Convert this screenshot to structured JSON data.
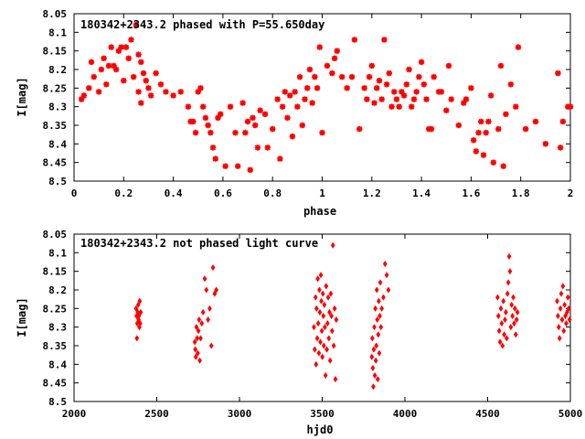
{
  "colors": {
    "marker": "#ff0000",
    "axis": "#000000",
    "background": "#ffffff"
  },
  "chart_data": [
    {
      "type": "scatter",
      "id": "phased",
      "title": "180342+2343.2 phased with P=55.650day",
      "xlabel": "phase",
      "ylabel": "I[mag]",
      "xlim": [
        0,
        2
      ],
      "ylim": [
        8.05,
        8.5
      ],
      "y_inverted": true,
      "xticks": [
        0,
        0.2,
        0.4,
        0.6,
        0.8,
        1,
        1.2,
        1.4,
        1.6,
        1.8,
        2
      ],
      "xtick_labels": [
        "0",
        "0.2",
        "0.4",
        "0.6",
        "0.8",
        "1",
        "1.2",
        "1.4",
        "1.6",
        "1.8",
        "2"
      ],
      "yticks": [
        8.05,
        8.1,
        8.15,
        8.2,
        8.25,
        8.3,
        8.35,
        8.4,
        8.45,
        8.5
      ],
      "ytick_labels": [
        "8.05",
        "8.1",
        "8.15",
        "8.2",
        "8.25",
        "8.3",
        "8.35",
        "8.4",
        "8.45",
        "8.5"
      ],
      "marker": "star",
      "points": [
        [
          0.03,
          8.28
        ],
        [
          0.04,
          8.27
        ],
        [
          0.06,
          8.25
        ],
        [
          0.07,
          8.18
        ],
        [
          0.08,
          8.22
        ],
        [
          0.1,
          8.26
        ],
        [
          0.11,
          8.2
        ],
        [
          0.12,
          8.17
        ],
        [
          0.13,
          8.24
        ],
        [
          0.14,
          8.19
        ],
        [
          0.15,
          8.14
        ],
        [
          0.16,
          8.19
        ],
        [
          0.17,
          8.2
        ],
        [
          0.18,
          8.15
        ],
        [
          0.19,
          8.14
        ],
        [
          0.2,
          8.23
        ],
        [
          0.21,
          8.14
        ],
        [
          0.22,
          8.17
        ],
        [
          0.23,
          8.12
        ],
        [
          0.25,
          8.08
        ],
        [
          0.24,
          8.22
        ],
        [
          0.26,
          8.16
        ],
        [
          0.27,
          8.18
        ],
        [
          0.26,
          8.26
        ],
        [
          0.27,
          8.29
        ],
        [
          0.28,
          8.21
        ],
        [
          0.29,
          8.23
        ],
        [
          0.3,
          8.25
        ],
        [
          0.31,
          8.27
        ],
        [
          0.33,
          8.21
        ],
        [
          0.35,
          8.24
        ],
        [
          0.37,
          8.26
        ],
        [
          0.4,
          8.27
        ],
        [
          0.43,
          8.26
        ],
        [
          0.46,
          8.3
        ],
        [
          0.47,
          8.34
        ],
        [
          0.48,
          8.34
        ],
        [
          0.49,
          8.37
        ],
        [
          0.5,
          8.26
        ],
        [
          0.51,
          8.25
        ],
        [
          0.52,
          8.3
        ],
        [
          0.53,
          8.33
        ],
        [
          0.54,
          8.35
        ],
        [
          0.55,
          8.37
        ],
        [
          0.56,
          8.41
        ],
        [
          0.57,
          8.44
        ],
        [
          0.58,
          8.33
        ],
        [
          0.59,
          8.32
        ],
        [
          0.61,
          8.46
        ],
        [
          0.63,
          8.3
        ],
        [
          0.65,
          8.37
        ],
        [
          0.66,
          8.46
        ],
        [
          0.68,
          8.29
        ],
        [
          0.69,
          8.37
        ],
        [
          0.7,
          8.34
        ],
        [
          0.71,
          8.47
        ],
        [
          0.72,
          8.33
        ],
        [
          0.73,
          8.35
        ],
        [
          0.74,
          8.41
        ],
        [
          0.75,
          8.31
        ],
        [
          0.77,
          8.32
        ],
        [
          0.78,
          8.41
        ],
        [
          0.8,
          8.36
        ],
        [
          0.82,
          8.28
        ],
        [
          0.83,
          8.44
        ],
        [
          0.84,
          8.3
        ],
        [
          0.85,
          8.26
        ],
        [
          0.86,
          8.33
        ],
        [
          0.87,
          8.27
        ],
        [
          0.88,
          8.38
        ],
        [
          0.89,
          8.26
        ],
        [
          0.9,
          8.3
        ],
        [
          0.91,
          8.22
        ],
        [
          0.92,
          8.35
        ],
        [
          0.93,
          8.28
        ],
        [
          0.94,
          8.25
        ],
        [
          0.95,
          8.2
        ],
        [
          0.96,
          8.29
        ],
        [
          0.97,
          8.22
        ],
        [
          0.98,
          8.25
        ],
        [
          0.99,
          8.14
        ],
        [
          1.0,
          8.37
        ],
        [
          1.02,
          8.19
        ],
        [
          1.04,
          8.21
        ],
        [
          1.05,
          8.17
        ],
        [
          1.06,
          8.15
        ],
        [
          1.08,
          8.22
        ],
        [
          1.1,
          8.25
        ],
        [
          1.12,
          8.22
        ],
        [
          1.13,
          8.12
        ],
        [
          1.15,
          8.36
        ],
        [
          1.17,
          8.25
        ],
        [
          1.18,
          8.28
        ],
        [
          1.19,
          8.22
        ],
        [
          1.2,
          8.19
        ],
        [
          1.21,
          8.29
        ],
        [
          1.22,
          8.25
        ],
        [
          1.23,
          8.23
        ],
        [
          1.24,
          8.28
        ],
        [
          1.25,
          8.12
        ],
        [
          1.26,
          8.24
        ],
        [
          1.27,
          8.21
        ],
        [
          1.28,
          8.3
        ],
        [
          1.29,
          8.26
        ],
        [
          1.3,
          8.28
        ],
        [
          1.31,
          8.3
        ],
        [
          1.32,
          8.26
        ],
        [
          1.33,
          8.27
        ],
        [
          1.34,
          8.24
        ],
        [
          1.35,
          8.2
        ],
        [
          1.36,
          8.3
        ],
        [
          1.37,
          8.28
        ],
        [
          1.38,
          8.26
        ],
        [
          1.39,
          8.22
        ],
        [
          1.4,
          8.18
        ],
        [
          1.41,
          8.24
        ],
        [
          1.42,
          8.28
        ],
        [
          1.43,
          8.36
        ],
        [
          1.44,
          8.36
        ],
        [
          1.45,
          8.22
        ],
        [
          1.47,
          8.26
        ],
        [
          1.48,
          8.26
        ],
        [
          1.5,
          8.31
        ],
        [
          1.51,
          8.19
        ],
        [
          1.52,
          8.28
        ],
        [
          1.55,
          8.35
        ],
        [
          1.57,
          8.29
        ],
        [
          1.58,
          8.28
        ],
        [
          1.6,
          8.25
        ],
        [
          1.61,
          8.39
        ],
        [
          1.62,
          8.42
        ],
        [
          1.63,
          8.37
        ],
        [
          1.64,
          8.34
        ],
        [
          1.65,
          8.43
        ],
        [
          1.66,
          8.37
        ],
        [
          1.67,
          8.34
        ],
        [
          1.68,
          8.27
        ],
        [
          1.69,
          8.45
        ],
        [
          1.71,
          8.36
        ],
        [
          1.72,
          8.19
        ],
        [
          1.73,
          8.46
        ],
        [
          1.74,
          8.32
        ],
        [
          1.76,
          8.24
        ],
        [
          1.78,
          8.3
        ],
        [
          1.79,
          8.14
        ],
        [
          1.82,
          8.36
        ],
        [
          1.86,
          8.34
        ],
        [
          1.9,
          8.4
        ],
        [
          1.95,
          8.21
        ],
        [
          1.96,
          8.41
        ],
        [
          1.97,
          8.34
        ],
        [
          1.99,
          8.3
        ],
        [
          2.0,
          8.3
        ]
      ]
    },
    {
      "type": "scatter",
      "id": "lightcurve",
      "title": "180342+2343.2 not phased light curve",
      "xlabel": "hjd0",
      "ylabel": "I[mag]",
      "xlim": [
        2000,
        5000
      ],
      "ylim": [
        8.05,
        8.5
      ],
      "y_inverted": true,
      "xticks": [
        2000,
        2500,
        3000,
        3500,
        4000,
        4500,
        5000
      ],
      "xtick_labels": [
        "2000",
        "2500",
        "3000",
        "3500",
        "4000",
        "4500",
        "5000"
      ],
      "yticks": [
        8.05,
        8.1,
        8.15,
        8.2,
        8.25,
        8.3,
        8.35,
        8.4,
        8.45,
        8.5
      ],
      "ytick_labels": [
        "8.05",
        "8.1",
        "8.15",
        "8.2",
        "8.25",
        "8.3",
        "8.35",
        "8.4",
        "8.45",
        "8.5"
      ],
      "marker": "diamond",
      "points": [
        [
          2375,
          8.25
        ],
        [
          2378,
          8.27
        ],
        [
          2380,
          8.33
        ],
        [
          2382,
          8.29
        ],
        [
          2385,
          8.26
        ],
        [
          2388,
          8.24
        ],
        [
          2390,
          8.28
        ],
        [
          2392,
          8.27
        ],
        [
          2395,
          8.3
        ],
        [
          2397,
          8.23
        ],
        [
          2400,
          8.29
        ],
        [
          2403,
          8.26
        ],
        [
          2730,
          8.34
        ],
        [
          2733,
          8.36
        ],
        [
          2736,
          8.38
        ],
        [
          2740,
          8.3
        ],
        [
          2744,
          8.33
        ],
        [
          2748,
          8.37
        ],
        [
          2752,
          8.31
        ],
        [
          2756,
          8.28
        ],
        [
          2760,
          8.39
        ],
        [
          2765,
          8.33
        ],
        [
          2772,
          8.29
        ],
        [
          2780,
          8.26
        ],
        [
          2790,
          8.17
        ],
        [
          2800,
          8.2
        ],
        [
          2810,
          8.28
        ],
        [
          2820,
          8.25
        ],
        [
          2830,
          8.35
        ],
        [
          2840,
          8.14
        ],
        [
          2850,
          8.21
        ],
        [
          2860,
          8.2
        ],
        [
          3450,
          8.3
        ],
        [
          3455,
          8.36
        ],
        [
          3460,
          8.22
        ],
        [
          3463,
          8.4
        ],
        [
          3466,
          8.25
        ],
        [
          3470,
          8.33
        ],
        [
          3473,
          8.17
        ],
        [
          3476,
          8.29
        ],
        [
          3480,
          8.37
        ],
        [
          3483,
          8.2
        ],
        [
          3486,
          8.26
        ],
        [
          3489,
          8.34
        ],
        [
          3492,
          8.16
        ],
        [
          3495,
          8.23
        ],
        [
          3498,
          8.31
        ],
        [
          3501,
          8.38
        ],
        [
          3504,
          8.21
        ],
        [
          3507,
          8.27
        ],
        [
          3510,
          8.35
        ],
        [
          3513,
          8.24
        ],
        [
          3516,
          8.3
        ],
        [
          3520,
          8.43
        ],
        [
          3524,
          8.19
        ],
        [
          3528,
          8.36
        ],
        [
          3532,
          8.29
        ],
        [
          3536,
          8.22
        ],
        [
          3540,
          8.33
        ],
        [
          3544,
          8.26
        ],
        [
          3548,
          8.39
        ],
        [
          3552,
          8.21
        ],
        [
          3556,
          8.27
        ],
        [
          3560,
          8.31
        ],
        [
          3565,
          8.08
        ],
        [
          3570,
          8.35
        ],
        [
          3575,
          8.25
        ],
        [
          3580,
          8.44
        ],
        [
          3585,
          8.28
        ],
        [
          3800,
          8.38
        ],
        [
          3803,
          8.33
        ],
        [
          3806,
          8.41
        ],
        [
          3809,
          8.46
        ],
        [
          3812,
          8.36
        ],
        [
          3815,
          8.3
        ],
        [
          3818,
          8.43
        ],
        [
          3821,
          8.25
        ],
        [
          3824,
          8.39
        ],
        [
          3827,
          8.35
        ],
        [
          3830,
          8.2
        ],
        [
          3833,
          8.28
        ],
        [
          3836,
          8.44
        ],
        [
          3839,
          8.32
        ],
        [
          3842,
          8.23
        ],
        [
          3845,
          8.37
        ],
        [
          3848,
          8.27
        ],
        [
          3851,
          8.18
        ],
        [
          3855,
          8.3
        ],
        [
          3860,
          8.25
        ],
        [
          3870,
          8.22
        ],
        [
          3880,
          8.13
        ],
        [
          3890,
          8.16
        ],
        [
          3900,
          8.2
        ],
        [
          4560,
          8.22
        ],
        [
          4565,
          8.27
        ],
        [
          4570,
          8.31
        ],
        [
          4575,
          8.34
        ],
        [
          4580,
          8.25
        ],
        [
          4585,
          8.29
        ],
        [
          4590,
          8.35
        ],
        [
          4595,
          8.23
        ],
        [
          4600,
          8.32
        ],
        [
          4605,
          8.28
        ],
        [
          4610,
          8.26
        ],
        [
          4615,
          8.33
        ],
        [
          4620,
          8.21
        ],
        [
          4625,
          8.18
        ],
        [
          4630,
          8.11
        ],
        [
          4635,
          8.15
        ],
        [
          4640,
          8.3
        ],
        [
          4645,
          8.24
        ],
        [
          4650,
          8.27
        ],
        [
          4655,
          8.22
        ],
        [
          4660,
          8.29
        ],
        [
          4665,
          8.25
        ],
        [
          4670,
          8.32
        ],
        [
          4675,
          8.28
        ],
        [
          4680,
          8.26
        ],
        [
          4920,
          8.23
        ],
        [
          4925,
          8.27
        ],
        [
          4930,
          8.3
        ],
        [
          4935,
          8.33
        ],
        [
          4940,
          8.25
        ],
        [
          4945,
          8.21
        ],
        [
          4950,
          8.28
        ],
        [
          4955,
          8.19
        ],
        [
          4960,
          8.31
        ],
        [
          4965,
          8.24
        ],
        [
          4970,
          8.27
        ],
        [
          4975,
          8.29
        ],
        [
          4980,
          8.26
        ],
        [
          4985,
          8.22
        ],
        [
          4990,
          8.25
        ],
        [
          4995,
          8.28
        ]
      ]
    }
  ]
}
